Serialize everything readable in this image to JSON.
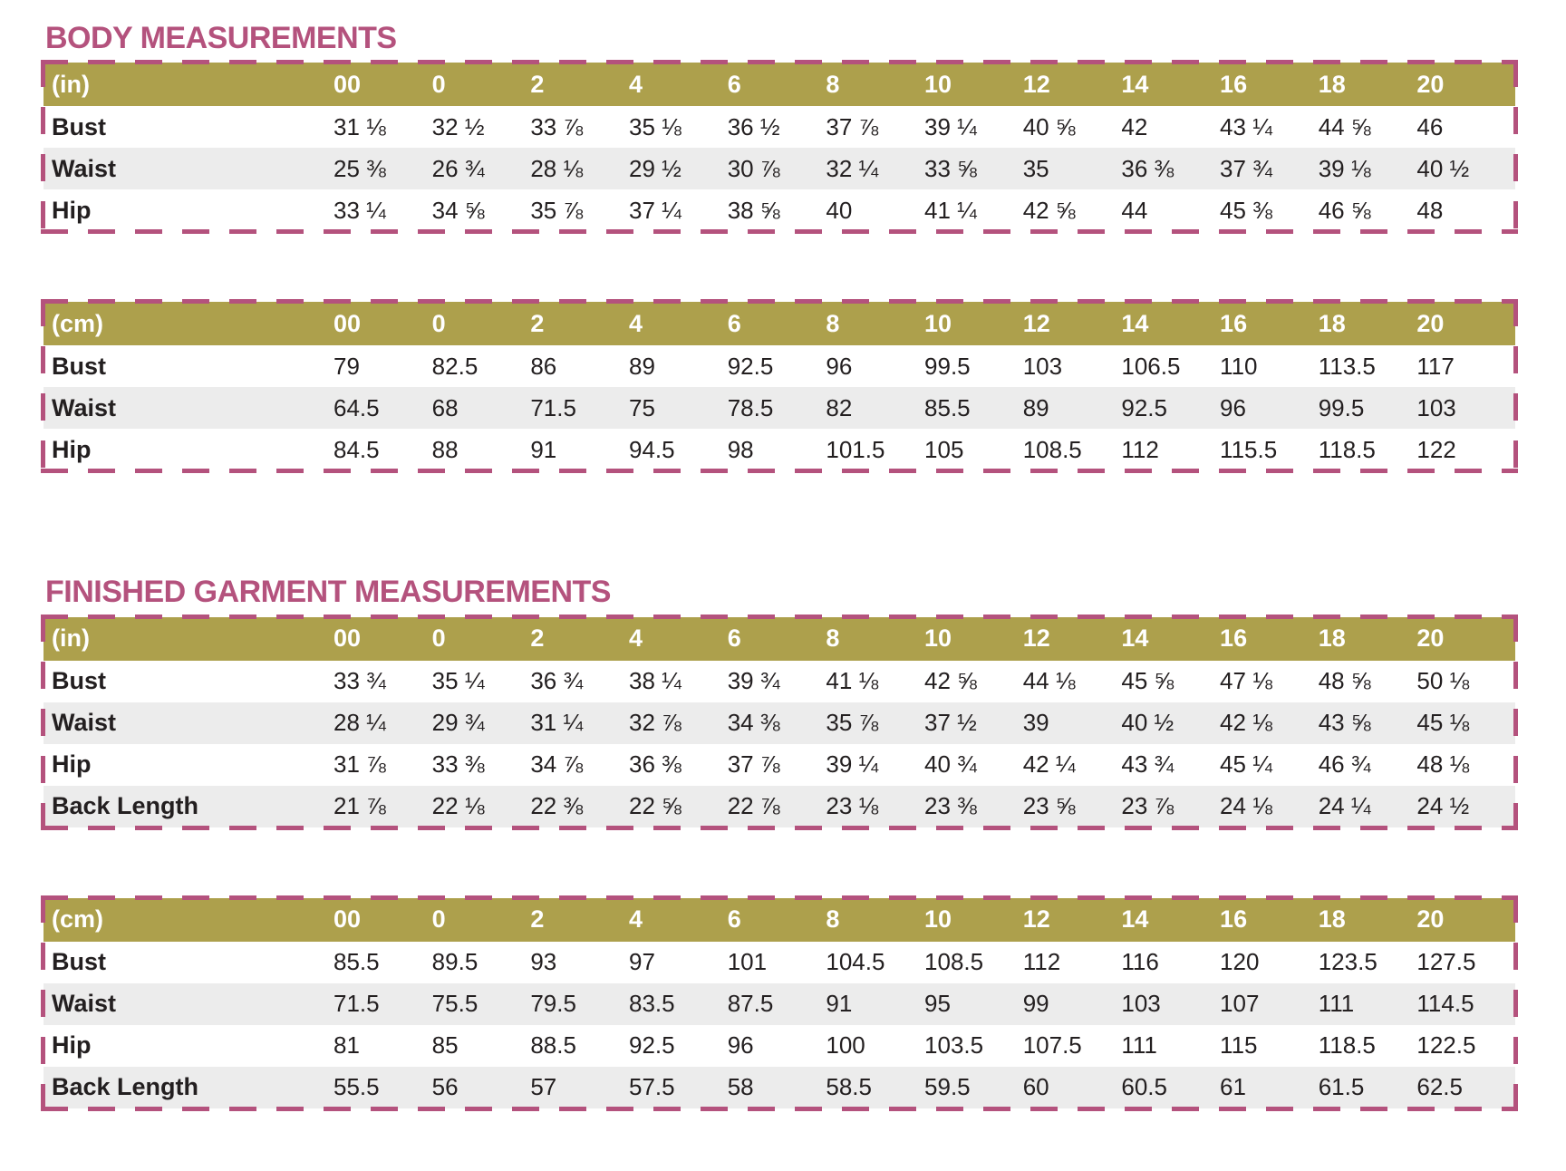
{
  "colors": {
    "title": "#b4527d",
    "header_bg": "#ada04c",
    "header_text": "#ffffff",
    "row_alt": "#ececec",
    "text": "#231f20",
    "border": "#b4527d"
  },
  "sizes": [
    "00",
    "0",
    "2",
    "4",
    "6",
    "8",
    "10",
    "12",
    "14",
    "16",
    "18",
    "20"
  ],
  "sections": [
    {
      "title": "BODY MEASUREMENTS",
      "tables": [
        {
          "unit": "(in)",
          "rows": [
            {
              "label": "Bust",
              "values": [
                "31 ⅛",
                "32 ½",
                "33 ⅞",
                "35 ⅛",
                "36 ½",
                "37 ⅞",
                "39 ¼",
                "40 ⅝",
                "42",
                "43 ¼",
                "44 ⅝",
                "46"
              ]
            },
            {
              "label": "Waist",
              "values": [
                "25 ⅜",
                "26 ¾",
                "28 ⅛",
                "29 ½",
                "30 ⅞",
                "32 ¼",
                "33 ⅝",
                "35",
                "36 ⅜",
                "37 ¾",
                "39 ⅛",
                "40 ½"
              ]
            },
            {
              "label": "Hip",
              "values": [
                "33 ¼",
                "34 ⅝",
                "35 ⅞",
                "37 ¼",
                "38 ⅝",
                "40",
                "41 ¼",
                "42 ⅝",
                "44",
                "45 ⅜",
                "46 ⅝",
                "48"
              ]
            }
          ]
        },
        {
          "unit": "(cm)",
          "rows": [
            {
              "label": "Bust",
              "values": [
                "79",
                "82.5",
                "86",
                "89",
                "92.5",
                "96",
                "99.5",
                "103",
                "106.5",
                "110",
                "113.5",
                "117"
              ]
            },
            {
              "label": "Waist",
              "values": [
                "64.5",
                "68",
                "71.5",
                "75",
                "78.5",
                "82",
                "85.5",
                "89",
                "92.5",
                "96",
                "99.5",
                "103"
              ]
            },
            {
              "label": "Hip",
              "values": [
                "84.5",
                "88",
                "91",
                "94.5",
                "98",
                "101.5",
                "105",
                "108.5",
                "112",
                "115.5",
                "118.5",
                "122"
              ]
            }
          ]
        }
      ]
    },
    {
      "title": "FINISHED GARMENT MEASUREMENTS",
      "tables": [
        {
          "unit": "(in)",
          "rows": [
            {
              "label": "Bust",
              "values": [
                "33 ¾",
                "35 ¼",
                "36 ¾",
                "38 ¼",
                "39 ¾",
                "41 ⅛",
                "42 ⅝",
                "44 ⅛",
                "45 ⅝",
                "47 ⅛",
                "48 ⅝",
                "50 ⅛"
              ]
            },
            {
              "label": "Waist",
              "values": [
                "28 ¼",
                "29 ¾",
                "31 ¼",
                "32 ⅞",
                "34 ⅜",
                "35 ⅞",
                "37 ½",
                "39",
                "40 ½",
                "42 ⅛",
                "43 ⅝",
                "45 ⅛"
              ]
            },
            {
              "label": "Hip",
              "values": [
                "31 ⅞",
                "33 ⅜",
                "34 ⅞",
                "36 ⅜",
                "37 ⅞",
                "39 ¼",
                "40 ¾",
                "42 ¼",
                "43 ¾",
                "45 ¼",
                "46 ¾",
                "48 ⅛"
              ]
            },
            {
              "label": "Back Length",
              "values": [
                "21 ⅞",
                "22 ⅛",
                "22 ⅜",
                "22 ⅝",
                "22 ⅞",
                "23 ⅛",
                "23 ⅜",
                "23 ⅝",
                "23 ⅞",
                "24 ⅛",
                "24 ¼",
                "24 ½"
              ]
            }
          ]
        },
        {
          "unit": "(cm)",
          "rows": [
            {
              "label": "Bust",
              "values": [
                "85.5",
                "89.5",
                "93",
                "97",
                "101",
                "104.5",
                "108.5",
                "112",
                "116",
                "120",
                "123.5",
                "127.5"
              ]
            },
            {
              "label": "Waist",
              "values": [
                "71.5",
                "75.5",
                "79.5",
                "83.5",
                "87.5",
                "91",
                "95",
                "99",
                "103",
                "107",
                "111",
                "114.5"
              ]
            },
            {
              "label": "Hip",
              "values": [
                "81",
                "85",
                "88.5",
                "92.5",
                "96",
                "100",
                "103.5",
                "107.5",
                "111",
                "115",
                "118.5",
                "122.5"
              ]
            },
            {
              "label": "Back Length",
              "values": [
                "55.5",
                "56",
                "57",
                "57.5",
                "58",
                "58.5",
                "59.5",
                "60",
                "60.5",
                "61",
                "61.5",
                "62.5"
              ]
            }
          ]
        }
      ]
    }
  ]
}
